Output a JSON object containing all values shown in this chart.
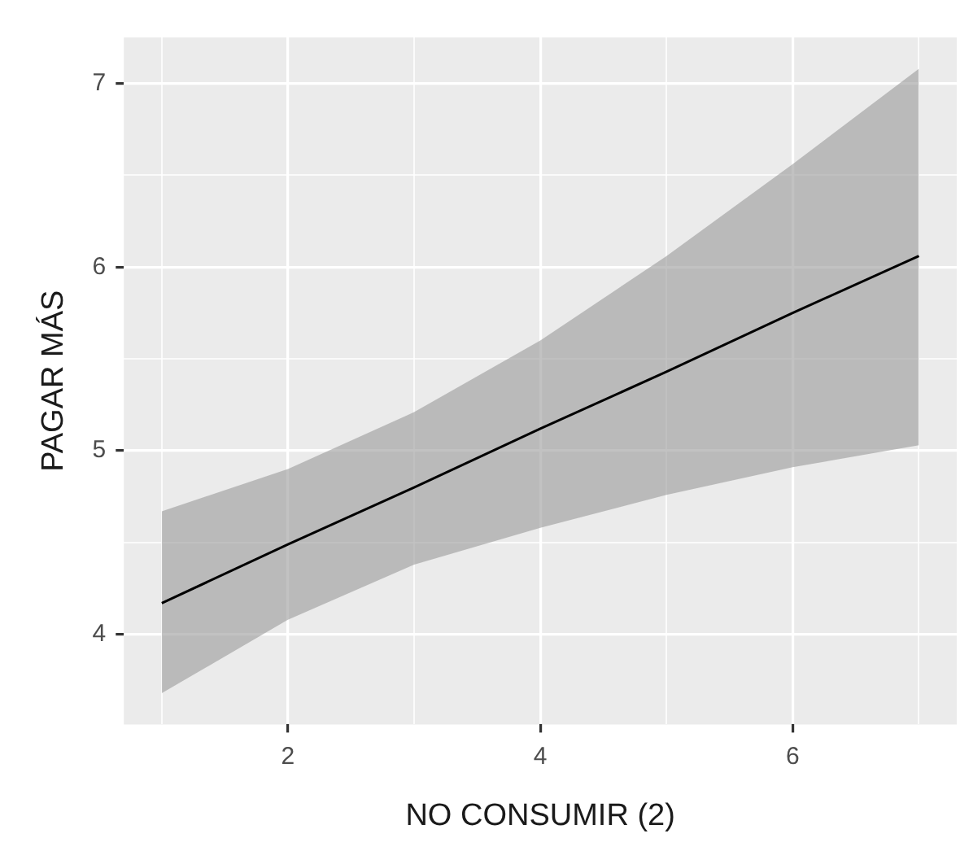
{
  "chart_data": {
    "type": "line",
    "xlabel": "NO CONSUMIR (2)",
    "ylabel": "PAGAR MÁS",
    "x": [
      1,
      2,
      3,
      4,
      5,
      6,
      7
    ],
    "series": [
      {
        "color": "#000000",
        "values": [
          4.17,
          4.49,
          4.8,
          5.12,
          5.43,
          5.75,
          6.06
        ],
        "lower": [
          3.68,
          4.08,
          4.38,
          4.58,
          4.76,
          4.91,
          5.03
        ],
        "upper": [
          4.67,
          4.9,
          5.21,
          5.6,
          6.06,
          6.56,
          7.08
        ]
      }
    ],
    "xlim": [
      0.7,
      7.3
    ],
    "ylim": [
      3.51,
      7.25
    ],
    "xticks": [
      {
        "value": 1,
        "label": null
      },
      2,
      {
        "value": 3,
        "label": null
      },
      4,
      {
        "value": 5,
        "label": null
      },
      6,
      {
        "value": 7,
        "label": null
      }
    ],
    "yticks": [
      4,
      {
        "value": 4.5,
        "label": null
      },
      5,
      {
        "value": 5.5,
        "label": null
      },
      6,
      {
        "value": 6.5,
        "label": null
      },
      7
    ],
    "grid": true,
    "legend": false,
    "marker": "none",
    "line_style": "solid"
  }
}
